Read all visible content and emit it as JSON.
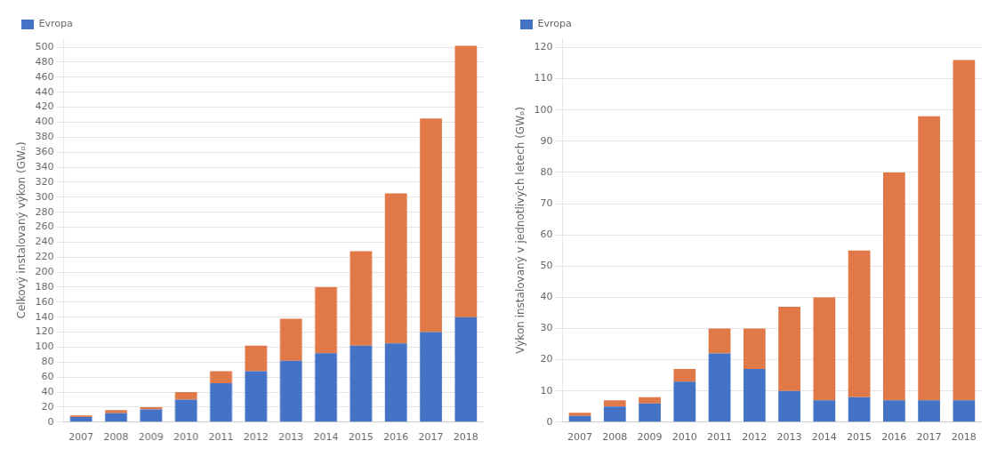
{
  "chart_data": [
    {
      "type": "bar",
      "stacked": true,
      "grid": true,
      "legend": "upper left",
      "ylabel": "Celkový instalovaný výkon (GWₚ)",
      "categories": [
        "2007",
        "2008",
        "2009",
        "2010",
        "2011",
        "2012",
        "2013",
        "2014",
        "2015",
        "2016",
        "2017",
        "2018"
      ],
      "series": [
        {
          "name": "Evropa",
          "color": "#4472C4",
          "values": [
            7,
            12,
            17,
            30,
            52,
            68,
            82,
            92,
            102,
            105,
            120,
            140
          ]
        },
        {
          "color": "#E07848",
          "values": [
            2,
            4,
            3,
            10,
            16,
            34,
            56,
            88,
            126,
            200,
            285,
            362
          ]
        }
      ],
      "ylim": [
        0,
        512
      ],
      "yticks": [
        0,
        20,
        40,
        60,
        80,
        100,
        120,
        140,
        160,
        180,
        200,
        220,
        240,
        260,
        280,
        300,
        320,
        340,
        360,
        380,
        400,
        420,
        440,
        460,
        480,
        500
      ]
    },
    {
      "type": "bar",
      "stacked": true,
      "grid": true,
      "legend": "upper left",
      "ylabel": "Výkon instalovaný v jednotlivých letech (GWₚ)",
      "categories": [
        "2007",
        "2008",
        "2009",
        "2010",
        "2011",
        "2012",
        "2013",
        "2014",
        "2015",
        "2016",
        "2017",
        "2018"
      ],
      "series": [
        {
          "name": "Evropa",
          "color": "#4472C4",
          "values": [
            2,
            5,
            6,
            13,
            22,
            17,
            10,
            7,
            8,
            7,
            7,
            7
          ]
        },
        {
          "color": "#E07848",
          "values": [
            1,
            2,
            2,
            4,
            8,
            13,
            27,
            33,
            47,
            73,
            91,
            109
          ]
        }
      ],
      "ylim": [
        0,
        123
      ],
      "yticks": [
        0,
        10,
        20,
        30,
        40,
        50,
        60,
        70,
        80,
        90,
        100,
        110,
        120
      ]
    }
  ]
}
